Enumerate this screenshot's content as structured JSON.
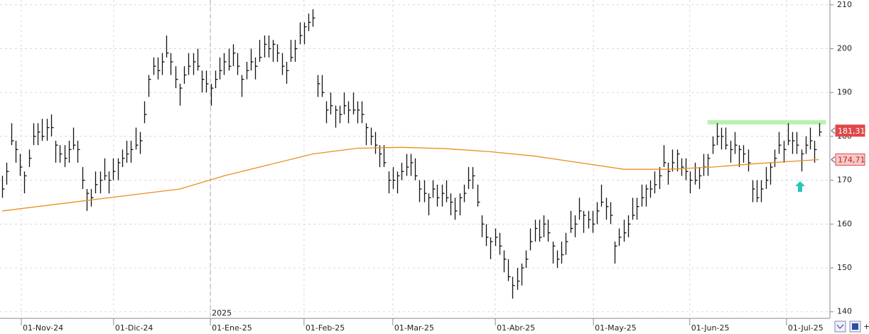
{
  "chart_data": {
    "type": "ohlc",
    "xlim": [
      -0.5,
      186
    ],
    "ylim": [
      138.5,
      211.1
    ],
    "xticks": [
      {
        "value": 4.3,
        "label": "01-Nov-24"
      },
      {
        "value": 25.1,
        "label": "01-Dic-24"
      },
      {
        "value": 46.9,
        "label": "01-Ene-25"
      },
      {
        "value": 68,
        "label": "01-Feb-25"
      },
      {
        "value": 88,
        "label": "01-Mar-25"
      },
      {
        "value": 111.1,
        "label": "01-Abr-25"
      },
      {
        "value": 133.2,
        "label": "01-May-25"
      },
      {
        "value": 154.9,
        "label": "01-Jun-25"
      },
      {
        "value": 176.7,
        "label": "01-Jul-25"
      }
    ],
    "yticks": [
      140,
      150,
      160,
      170,
      180,
      190,
      200,
      210
    ],
    "grid": true,
    "year_marker": {
      "value": 46.9,
      "label": "2025"
    },
    "color": "#111111",
    "high": [
      171,
      174,
      183,
      179,
      176,
      172,
      177,
      183,
      183,
      184,
      184,
      185,
      179,
      178,
      178,
      179,
      182,
      179,
      173,
      168,
      168,
      172,
      172,
      175,
      172,
      175,
      175,
      177,
      179,
      179,
      182,
      181,
      188,
      194,
      198,
      198,
      199,
      203,
      199,
      196,
      192,
      196,
      199,
      199,
      200,
      195,
      195,
      192,
      195,
      198,
      199,
      200,
      201,
      199,
      194,
      197,
      200,
      198,
      202,
      203,
      203,
      202,
      201,
      199,
      197,
      202,
      202,
      206,
      206,
      208,
      209,
      194,
      194,
      188,
      190,
      187,
      187,
      190,
      188,
      190,
      188,
      188,
      183,
      182,
      181,
      178,
      178,
      172,
      173,
      172,
      174,
      176,
      176,
      175,
      170,
      170,
      167,
      170,
      169,
      169,
      170,
      167,
      166,
      167,
      169,
      173,
      173,
      169,
      162,
      160,
      157,
      159,
      158,
      154,
      152,
      148,
      150,
      151,
      154,
      159,
      161,
      161,
      162,
      161,
      156,
      154,
      156,
      158,
      163,
      162,
      166,
      163,
      163,
      163,
      165,
      169,
      166,
      165,
      156,
      159,
      161,
      162,
      166,
      166,
      169,
      169,
      170,
      172,
      173,
      178,
      174,
      177,
      177,
      175,
      175,
      172,
      174,
      173,
      176,
      176,
      180,
      183,
      182,
      182,
      179,
      181,
      178,
      178,
      177,
      170,
      170,
      170,
      173,
      174,
      177,
      181,
      179,
      183,
      181,
      181,
      177,
      180,
      182,
      179,
      183
    ],
    "low": [
      166,
      169,
      178,
      174,
      171,
      167,
      173,
      178,
      178,
      179,
      179,
      180,
      174,
      174,
      173,
      174,
      177,
      174,
      168,
      163,
      164,
      167,
      167,
      170,
      167,
      170,
      170,
      173,
      174,
      174,
      177,
      176,
      183,
      189,
      194,
      193,
      194,
      198,
      194,
      191,
      187,
      192,
      194,
      194,
      195,
      190,
      190,
      187,
      191,
      193,
      194,
      195,
      196,
      194,
      189,
      193,
      195,
      193,
      197,
      198,
      198,
      197,
      197,
      194,
      192,
      197,
      197,
      201,
      201,
      204,
      205,
      189,
      189,
      183,
      185,
      182,
      183,
      185,
      183,
      185,
      183,
      183,
      178,
      178,
      176,
      173,
      173,
      167,
      168,
      167,
      170,
      171,
      171,
      170,
      165,
      165,
      162,
      166,
      164,
      164,
      165,
      162,
      161,
      162,
      165,
      168,
      168,
      164,
      157,
      155,
      152,
      155,
      153,
      149,
      147,
      143,
      145,
      146,
      150,
      154,
      156,
      156,
      157,
      156,
      151,
      150,
      151,
      153,
      158,
      157,
      161,
      158,
      159,
      158,
      160,
      164,
      161,
      160,
      151,
      155,
      156,
      157,
      161,
      161,
      164,
      164,
      166,
      167,
      168,
      173,
      169,
      172,
      172,
      171,
      170,
      167,
      169,
      168,
      171,
      171,
      176,
      178,
      177,
      177,
      174,
      176,
      173,
      174,
      172,
      165,
      165,
      165,
      168,
      169,
      173,
      176,
      174,
      178,
      176,
      176,
      172,
      176,
      177,
      174,
      180
    ],
    "close": [
      168,
      172,
      179,
      177,
      173,
      171,
      175,
      180,
      181,
      180,
      182,
      182,
      178,
      176,
      175,
      177,
      178,
      177,
      170,
      167,
      166,
      169,
      170,
      171,
      170,
      172,
      174,
      175,
      176,
      177,
      178,
      179,
      185,
      193,
      196,
      195,
      197,
      199,
      197,
      193,
      191,
      194,
      196,
      197,
      196,
      193,
      192,
      191,
      193,
      195,
      197,
      196,
      199,
      196,
      193,
      195,
      197,
      196,
      198,
      201,
      200,
      201,
      199,
      196,
      195,
      198,
      200,
      203,
      205,
      206,
      207,
      192,
      190,
      186,
      187,
      186,
      185,
      187,
      186,
      186,
      186,
      185,
      182,
      180,
      178,
      176,
      174,
      170,
      170,
      171,
      172,
      173,
      174,
      171,
      168,
      167,
      166,
      168,
      166,
      167,
      166,
      165,
      163,
      166,
      167,
      170,
      171,
      165,
      160,
      157,
      156,
      157,
      155,
      152,
      148,
      146,
      147,
      150,
      152,
      156,
      159,
      157,
      160,
      158,
      155,
      152,
      153,
      156,
      159,
      160,
      163,
      162,
      161,
      160,
      163,
      165,
      164,
      162,
      155,
      157,
      158,
      160,
      162,
      164,
      166,
      168,
      168,
      169,
      171,
      174,
      172,
      174,
      176,
      173,
      172,
      170,
      170,
      171,
      173,
      175,
      178,
      180,
      180,
      178,
      177,
      178,
      177,
      176,
      174,
      168,
      166,
      168,
      170,
      173,
      175,
      178,
      177,
      179,
      179,
      178,
      176,
      178,
      179,
      177,
      181
    ],
    "moving_average": {
      "color": "#e8901e",
      "x": [
        0,
        20,
        40,
        50,
        60,
        70,
        80,
        90,
        100,
        110,
        120,
        130,
        140,
        150,
        160,
        170,
        184
      ],
      "values": [
        163,
        165.5,
        168,
        171,
        173.5,
        176,
        177.3,
        177.5,
        177.2,
        176.5,
        175.5,
        174,
        172.5,
        172.5,
        173,
        173.8,
        174.71
      ]
    },
    "resistance": {
      "value": 183.2,
      "x": [
        158.9,
        185.6
      ],
      "color": "#b8f0b0"
    },
    "price_labels": [
      {
        "value": 181.31,
        "label": "181,31",
        "color": "#e04848",
        "text_color": "#ffffff"
      },
      {
        "value": 174.71,
        "label": "174,71",
        "color": "#f6c9c9",
        "text_color": "#c02020"
      }
    ]
  }
}
